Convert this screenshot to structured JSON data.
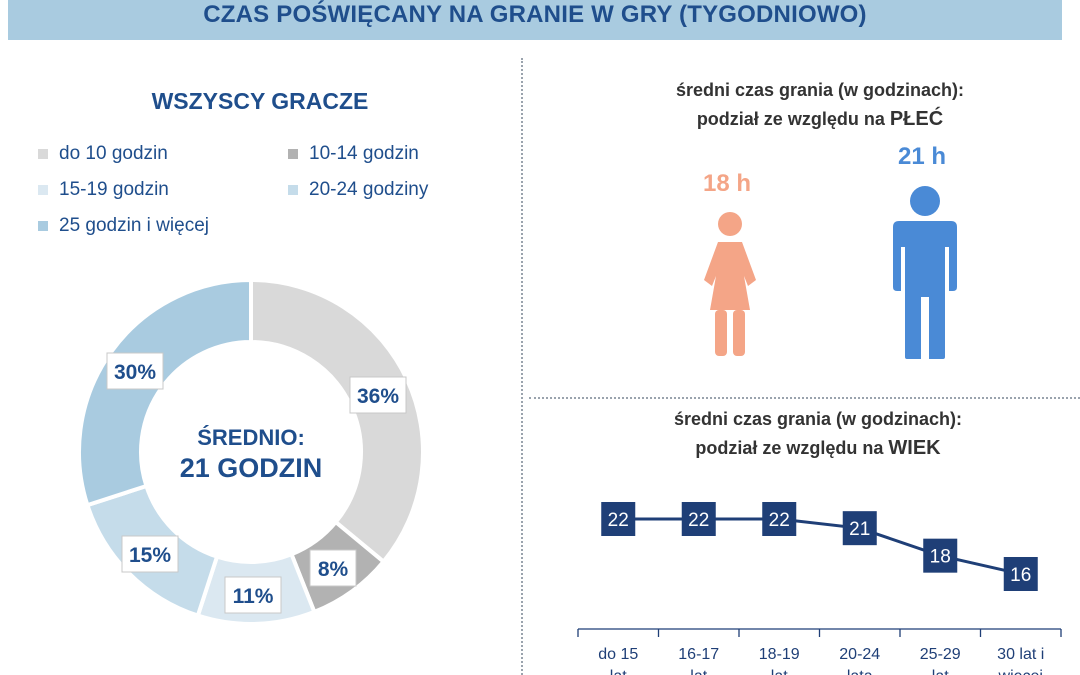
{
  "header": {
    "title": "CZAS POŚWIĘCANY NA GRANIE W GRY (TYGODNIOWO)"
  },
  "colors": {
    "title_blue": "#1f4e8c",
    "banner": "#a9cbe0",
    "female": "#f4a587",
    "male": "#4a8ad6",
    "line": "#1f3f77"
  },
  "chart_data": [
    {
      "type": "pie",
      "title": "WSZYSCY GRACZE",
      "center_label": "ŚREDNIO:",
      "center_value": "21 GODZIN",
      "slices": [
        {
          "label": "do 10 godzin",
          "value": 36,
          "display": "36%",
          "color": "#d9d9d9"
        },
        {
          "label": "10-14 godzin",
          "value": 8,
          "display": "8%",
          "color": "#b2b2b2"
        },
        {
          "label": "15-19 godzin",
          "value": 11,
          "display": "11%",
          "color": "#dbe8f1"
        },
        {
          "label": "20-24 godziny",
          "value": 15,
          "display": "15%",
          "color": "#c5dcea"
        },
        {
          "label": "25 godzin i więcej",
          "value": 30,
          "display": "30%",
          "color": "#a9cbe0"
        }
      ],
      "legend": "top"
    },
    {
      "type": "bar",
      "title_line1": "średni czas grania (w godzinach):",
      "title_line2_prefix": "podział ze względu na",
      "title_line2_accent": "PŁEĆ",
      "categories": [
        "kobiety",
        "mężczyźni"
      ],
      "values": [
        18,
        21
      ],
      "display": [
        "18 h",
        "21 h"
      ],
      "unit": "h"
    },
    {
      "type": "line",
      "title_line1": "średni czas grania (w godzinach):",
      "title_line2_prefix": "podział ze względu na",
      "title_line2_accent": "WIEK",
      "categories": [
        [
          "do 15",
          "lat"
        ],
        [
          "16-17",
          "lat"
        ],
        [
          "18-19",
          "lat"
        ],
        [
          "20-24",
          "lata"
        ],
        [
          "25-29",
          "lat"
        ],
        [
          "30 lat i",
          "więcej"
        ]
      ],
      "values": [
        22,
        22,
        22,
        21,
        18,
        16
      ]
    }
  ]
}
